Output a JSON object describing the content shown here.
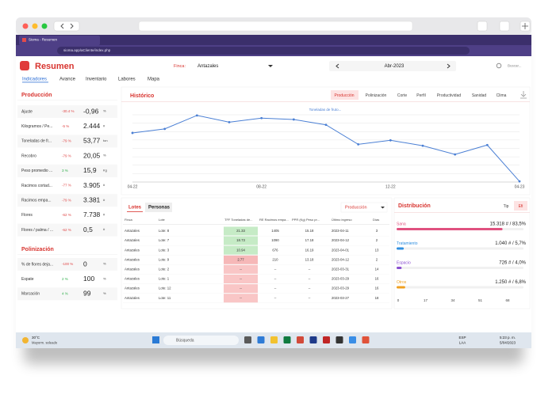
{
  "browser": {
    "tab_title": "Sioma - Resumen",
    "url": "sioma.app/aCliente/index.php"
  },
  "header": {
    "title": "Resumen",
    "finca_label": "Finca:",
    "finca": "Antazales",
    "period": "Abr-2023",
    "search": "Buscar..."
  },
  "nav": [
    "Indicadores",
    "Avance",
    "Inventario",
    "Labores",
    "Mapa"
  ],
  "produccion": {
    "title": "Producción",
    "rows": [
      {
        "label": "Ajuste",
        "change": "-30.4 %",
        "value": "-0,96",
        "unit": "%"
      },
      {
        "label": "Kilogramos / Pe...",
        "change": "-5 %",
        "value": "2.444",
        "unit": "#"
      },
      {
        "label": "Toneladas de fr...",
        "change": "-79 %",
        "value": "53,77",
        "unit": "ton"
      },
      {
        "label": "Recobro",
        "change": "-79 %",
        "value": "20,05",
        "unit": "%"
      },
      {
        "label": "Peso promedio ...",
        "change": "3 %",
        "value": "15,9",
        "unit": "Kg"
      },
      {
        "label": "Racimos cortad...",
        "change": "-77 %",
        "value": "3.905",
        "unit": "#"
      },
      {
        "label": "Racimos empa...",
        "change": "-79 %",
        "value": "3.381",
        "unit": "#"
      },
      {
        "label": "Flores",
        "change": "-62 %",
        "value": "7.738",
        "unit": "#"
      },
      {
        "label": "Flores / palma / ...",
        "change": "-62 %",
        "value": "0,5",
        "unit": "#"
      }
    ]
  },
  "polinizacion": {
    "title": "Polinización",
    "rows": [
      {
        "label": "% de flores deja...",
        "change": "-100 %",
        "value": "0",
        "unit": "%"
      },
      {
        "label": "Espate",
        "change": "2 %",
        "value": "100",
        "unit": "%"
      },
      {
        "label": "Marcación",
        "change": "4 %",
        "value": "99",
        "unit": "%"
      }
    ]
  },
  "historico": {
    "title": "Histórico",
    "tabs": [
      "Producción",
      "Polinización",
      "Corte",
      "Perfil",
      "Productividad",
      "Sanidad",
      "Clima"
    ]
  },
  "chart_data": {
    "type": "line",
    "title": "Toneladas de fruto...",
    "color": "#4a7fd4",
    "categories": [
      "04-22",
      null,
      null,
      null,
      "08-22",
      null,
      null,
      null,
      "12-22",
      null,
      null,
      null,
      "04-23"
    ],
    "values": [
      73,
      79,
      99,
      89,
      95,
      93,
      85,
      56,
      62,
      54,
      41,
      55,
      1
    ],
    "ylim": [
      0,
      100
    ]
  },
  "lotes": {
    "tabs": [
      "Lotes",
      "Personas"
    ],
    "metric": "Producción",
    "columns": [
      "Finca",
      "Lote",
      "TFF Toneladas de...",
      "RE Racimos empa...",
      "PPR (Kg) Peso pr...",
      "Último ingreso",
      "Días"
    ],
    "rows": [
      [
        "Antazales",
        "Lote: 8",
        "21.33",
        "1405",
        "15.18",
        "2023-04-11",
        "3"
      ],
      [
        "Antazales",
        "Lote: 7",
        "18.73",
        "1090",
        "17.18",
        "2023-04-12",
        "2"
      ],
      [
        "Antazales",
        "Lote: 3",
        "10.94",
        "676",
        "16.19",
        "2023-04-01",
        "13"
      ],
      [
        "Antazales",
        "Lote: 9",
        "2.77",
        "210",
        "13.18",
        "2023-04-12",
        "2"
      ],
      [
        "Antazales",
        "Lote: 2",
        "--",
        "--",
        "--",
        "2023-03-31",
        "14"
      ],
      [
        "Antazales",
        "Lote: 1",
        "--",
        "--",
        "--",
        "2023-03-29",
        "16"
      ],
      [
        "Antazales",
        "Lote: 12",
        "--",
        "--",
        "--",
        "2023-03-29",
        "16"
      ],
      [
        "Antazales",
        "Lote: 11",
        "--",
        "--",
        "--",
        "2023-03-27",
        "18"
      ]
    ],
    "tff_colors": [
      "#c6ebc6",
      "#c6ebc6",
      "#c6ebc6",
      "#f6b8b8",
      "#f9c6c6",
      "#f9c6c6",
      "#f9c6c6",
      "#f9c6c6"
    ]
  },
  "distribucion": {
    "title": "Distribución",
    "toggles": [
      "Tip",
      "Efi"
    ],
    "items": [
      {
        "name": "Sana",
        "label": "15.318 # / 83,5%",
        "pct": 83.5,
        "color": "#e0517f"
      },
      {
        "name": "Tratamiento",
        "label": "1.040 # / 5,7%",
        "pct": 5.7,
        "color": "#2f8fe0"
      },
      {
        "name": "Espacio",
        "label": "726 # / 4,0%",
        "pct": 4.0,
        "color": "#8a4fd0"
      },
      {
        "name": "Otros",
        "label": "1.250 # / 6,8%",
        "pct": 6.8,
        "color": "#f0a020"
      }
    ],
    "axis": [
      0,
      17,
      34,
      51,
      68
    ]
  },
  "taskbar": {
    "temp": "30°C",
    "weather": "Mayorm. soleado",
    "search": "Búsqueda",
    "lang": "ESP",
    "layout": "LAA",
    "time": "5:23 p. m.",
    "date": "5/04/2023"
  }
}
